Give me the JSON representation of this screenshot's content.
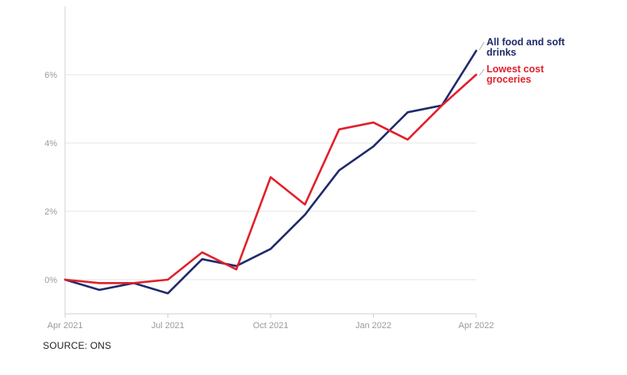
{
  "chart_data": {
    "type": "line",
    "title": "",
    "xlabel": "",
    "ylabel": "",
    "x": [
      "2021-04",
      "2021-05",
      "2021-06",
      "2021-07",
      "2021-08",
      "2021-09",
      "2021-10",
      "2021-11",
      "2021-12",
      "2022-01",
      "2022-02",
      "2022-03",
      "2022-04"
    ],
    "x_tick_labels": [
      "Apr 2021",
      "Jul 2021",
      "Oct 2021",
      "Jan 2022",
      "Apr 2022"
    ],
    "x_tick_index": [
      0,
      3,
      6,
      9,
      12
    ],
    "y_tick_labels": [
      "0%",
      "2%",
      "4%",
      "6%"
    ],
    "y_tick_values": [
      0,
      2,
      4,
      6
    ],
    "ylim": [
      -1,
      8
    ],
    "grid": "horizontal",
    "legend_placement": "right-end-labels",
    "series": [
      {
        "name": "All food and soft drinks",
        "name_lines": [
          "All food and soft",
          "drinks"
        ],
        "color": "#1f2a6b",
        "values": [
          0.0,
          -0.3,
          -0.1,
          -0.4,
          0.6,
          0.4,
          0.9,
          1.9,
          3.2,
          3.9,
          4.9,
          5.1,
          6.7
        ]
      },
      {
        "name": "Lowest cost groceries",
        "name_lines": [
          "Lowest cost",
          "groceries"
        ],
        "color": "#e0202b",
        "values": [
          0.0,
          -0.1,
          -0.1,
          0.0,
          0.8,
          0.3,
          3.0,
          2.2,
          4.4,
          4.6,
          4.1,
          5.1,
          6.0
        ]
      }
    ]
  },
  "source": "SOURCE: ONS"
}
